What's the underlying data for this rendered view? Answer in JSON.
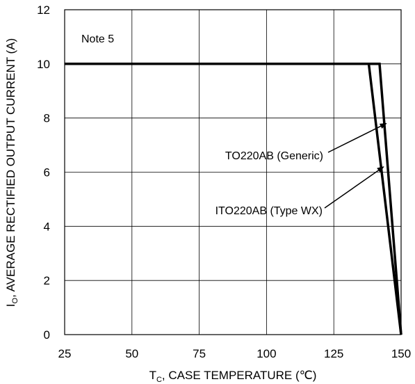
{
  "chart_data": {
    "type": "line",
    "xlabel": {
      "main": "T",
      "sub": "C",
      "rest": ", CASE TEMPERATURE (℃)"
    },
    "ylabel": {
      "main": "I",
      "sub": "O",
      "rest": ", AVERAGE RECTIFIED OUTPUT CURRENT (A)"
    },
    "xlim": [
      25,
      150
    ],
    "ylim": [
      0,
      12
    ],
    "xticks": [
      "25",
      "50",
      "75",
      "100",
      "125",
      "150"
    ],
    "yticks": [
      "0",
      "2",
      "4",
      "6",
      "8",
      "10",
      "12"
    ],
    "grid": true,
    "series": [
      {
        "name": "TO220AB (Generic)",
        "points": [
          [
            25,
            10
          ],
          [
            142,
            10
          ],
          [
            150,
            0
          ]
        ]
      },
      {
        "name": "ITO220AB (Type WX)",
        "points": [
          [
            25,
            10
          ],
          [
            138,
            10
          ],
          [
            150,
            0
          ]
        ]
      }
    ],
    "annotations": [
      {
        "text": "Note 5"
      },
      {
        "text": "TO220AB (Generic)",
        "arrow_target": [
          144.5,
          7.8
        ]
      },
      {
        "text": "ITO220AB (Type WX)",
        "arrow_target": [
          143.5,
          6.2
        ]
      }
    ]
  }
}
